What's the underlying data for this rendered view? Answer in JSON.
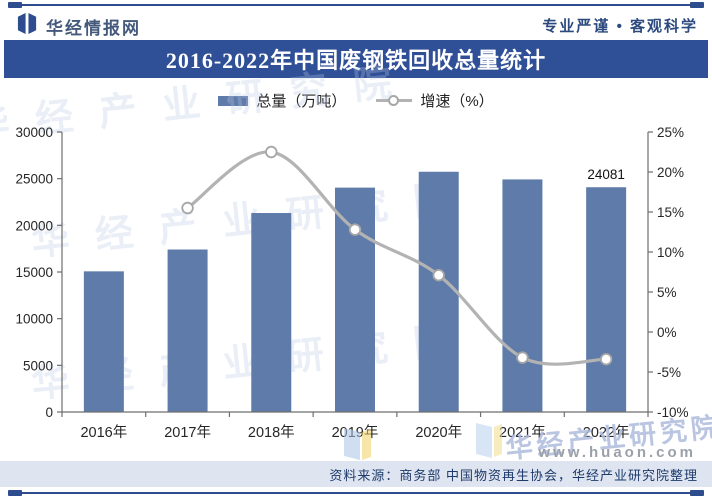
{
  "page": {
    "brand": "华经情报网",
    "slogan": "专业严谨 • 客观科学",
    "title": "2016-2022年中国废钢铁回收总量统计",
    "source_note": "资料来源：商务部 中国物资再生协会，华经产业研究院整理",
    "watermark_text": "华经产业研究院",
    "watermark_url": "www.huaon.com"
  },
  "legend": {
    "bar_label": "总量（万吨）",
    "line_label": "增速（%）"
  },
  "colors": {
    "accent": "#2e4d8e",
    "title_bar_bg": "#2f4f96",
    "bar": "#5e7ba9",
    "line": "#b3b3b3",
    "marker_fill": "#ffffff",
    "marker_stroke": "#a6a6a6",
    "axis": "#6f6f6f",
    "label": "#262626",
    "footer_bg": "#dee5f1",
    "watermark": "#bac8e6"
  },
  "chart_data": {
    "type": "bar",
    "subtype": "bar+line-dual-axis",
    "title": "2016-2022年中国废钢铁回收总量统计",
    "categories": [
      "2016年",
      "2017年",
      "2018年",
      "2019年",
      "2020年",
      "2021年",
      "2022年"
    ],
    "series": [
      {
        "name": "总量（万吨）",
        "type": "bar",
        "axis": "left",
        "values": [
          15070,
          17410,
          21320,
          24040,
          25740,
          24920,
          24081
        ]
      },
      {
        "name": "增速（%）",
        "type": "line",
        "axis": "right",
        "values": [
          null,
          15.5,
          22.5,
          12.8,
          7.1,
          -3.2,
          -3.4
        ]
      }
    ],
    "point_label": {
      "series": 0,
      "index": 6,
      "text": "24081"
    },
    "left_axis": {
      "min": 0,
      "max": 30000,
      "step": 5000,
      "ticks": [
        "0",
        "5000",
        "10000",
        "15000",
        "20000",
        "25000",
        "30000"
      ]
    },
    "right_axis": {
      "min": -10,
      "max": 25,
      "step": 5,
      "suffix": "%",
      "ticks": [
        "-10%",
        "-5%",
        "0%",
        "5%",
        "10%",
        "15%",
        "20%",
        "25%"
      ]
    },
    "grid": false,
    "legend_position": "top-center"
  }
}
